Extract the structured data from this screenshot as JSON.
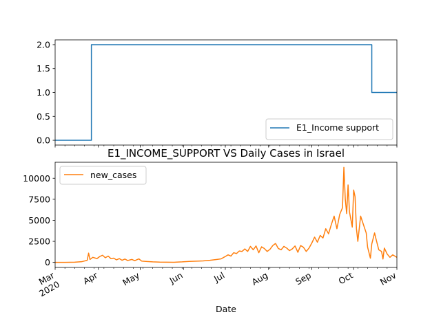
{
  "chart_data": [
    {
      "type": "line",
      "title": "",
      "xlabel": "",
      "ylabel": "",
      "x_range": [
        "2020-03-01",
        "2020-11-01"
      ],
      "ylim": [
        -0.1,
        2.1
      ],
      "yticks": [
        "0.0",
        "0.5",
        "1.0",
        "1.5",
        "2.0"
      ],
      "legend": {
        "position": "lower-right"
      },
      "series": [
        {
          "name": "E1_Income support",
          "color": "#1f77b4",
          "step": true,
          "points": [
            [
              "2020-03-01",
              0
            ],
            [
              "2020-03-26",
              0
            ],
            [
              "2020-03-27",
              0
            ],
            [
              "2020-03-27",
              2
            ],
            [
              "2020-10-14",
              2
            ],
            [
              "2020-10-14",
              1
            ],
            [
              "2020-11-01",
              1
            ]
          ]
        }
      ]
    },
    {
      "type": "line",
      "title": "E1_INCOME_SUPPORT VS Daily Cases in Israel",
      "xlabel": "Date",
      "ylabel": "",
      "x_range": [
        "2020-03-01",
        "2020-11-01"
      ],
      "ylim": [
        -600,
        11900
      ],
      "yticks": [
        "0",
        "2500",
        "5000",
        "7500",
        "10000"
      ],
      "legend": {
        "position": "upper-left"
      },
      "series": [
        {
          "name": "new_cases",
          "color": "#ff7f0e",
          "points": [
            [
              "2020-03-01",
              2
            ],
            [
              "2020-03-08",
              5
            ],
            [
              "2020-03-15",
              20
            ],
            [
              "2020-03-20",
              80
            ],
            [
              "2020-03-24",
              250
            ],
            [
              "2020-03-25",
              1100
            ],
            [
              "2020-03-26",
              350
            ],
            [
              "2020-03-28",
              600
            ],
            [
              "2020-03-31",
              450
            ],
            [
              "2020-04-02",
              700
            ],
            [
              "2020-04-04",
              850
            ],
            [
              "2020-04-06",
              550
            ],
            [
              "2020-04-08",
              750
            ],
            [
              "2020-04-10",
              450
            ],
            [
              "2020-04-12",
              500
            ],
            [
              "2020-04-14",
              300
            ],
            [
              "2020-04-16",
              450
            ],
            [
              "2020-04-18",
              250
            ],
            [
              "2020-04-20",
              400
            ],
            [
              "2020-04-22",
              220
            ],
            [
              "2020-04-25",
              350
            ],
            [
              "2020-04-27",
              200
            ],
            [
              "2020-04-30",
              420
            ],
            [
              "2020-05-02",
              160
            ],
            [
              "2020-05-05",
              120
            ],
            [
              "2020-05-10",
              60
            ],
            [
              "2020-05-15",
              30
            ],
            [
              "2020-05-20",
              20
            ],
            [
              "2020-05-25",
              15
            ],
            [
              "2020-05-31",
              60
            ],
            [
              "2020-06-05",
              120
            ],
            [
              "2020-06-10",
              150
            ],
            [
              "2020-06-15",
              180
            ],
            [
              "2020-06-20",
              250
            ],
            [
              "2020-06-25",
              350
            ],
            [
              "2020-06-28",
              420
            ],
            [
              "2020-07-01",
              700
            ],
            [
              "2020-07-03",
              900
            ],
            [
              "2020-07-05",
              750
            ],
            [
              "2020-07-07",
              1150
            ],
            [
              "2020-07-09",
              1050
            ],
            [
              "2020-07-11",
              1350
            ],
            [
              "2020-07-13",
              1300
            ],
            [
              "2020-07-15",
              1600
            ],
            [
              "2020-07-17",
              1300
            ],
            [
              "2020-07-19",
              1900
            ],
            [
              "2020-07-21",
              1500
            ],
            [
              "2020-07-23",
              1950
            ],
            [
              "2020-07-25",
              1150
            ],
            [
              "2020-07-27",
              1850
            ],
            [
              "2020-07-29",
              1650
            ],
            [
              "2020-07-31",
              1300
            ],
            [
              "2020-08-02",
              1550
            ],
            [
              "2020-08-04",
              2000
            ],
            [
              "2020-08-06",
              2250
            ],
            [
              "2020-08-08",
              1650
            ],
            [
              "2020-08-10",
              1500
            ],
            [
              "2020-08-12",
              1900
            ],
            [
              "2020-08-14",
              1700
            ],
            [
              "2020-08-16",
              1400
            ],
            [
              "2020-08-18",
              1600
            ],
            [
              "2020-08-20",
              1950
            ],
            [
              "2020-08-22",
              1200
            ],
            [
              "2020-08-24",
              2000
            ],
            [
              "2020-08-26",
              1800
            ],
            [
              "2020-08-28",
              1300
            ],
            [
              "2020-08-30",
              1700
            ],
            [
              "2020-09-01",
              2300
            ],
            [
              "2020-09-03",
              3000
            ],
            [
              "2020-09-05",
              2400
            ],
            [
              "2020-09-07",
              3200
            ],
            [
              "2020-09-09",
              2900
            ],
            [
              "2020-09-11",
              4000
            ],
            [
              "2020-09-13",
              3400
            ],
            [
              "2020-09-15",
              4500
            ],
            [
              "2020-09-17",
              5500
            ],
            [
              "2020-09-19",
              4000
            ],
            [
              "2020-09-21",
              5700
            ],
            [
              "2020-09-23",
              6500
            ],
            [
              "2020-09-24",
              11300
            ],
            [
              "2020-09-25",
              7500
            ],
            [
              "2020-09-26",
              5800
            ],
            [
              "2020-09-27",
              9200
            ],
            [
              "2020-09-28",
              6000
            ],
            [
              "2020-09-30",
              4200
            ],
            [
              "2020-10-01",
              8600
            ],
            [
              "2020-10-02",
              7800
            ],
            [
              "2020-10-03",
              4000
            ],
            [
              "2020-10-04",
              2500
            ],
            [
              "2020-10-06",
              5500
            ],
            [
              "2020-10-08",
              4500
            ],
            [
              "2020-10-10",
              3500
            ],
            [
              "2020-10-11",
              1800
            ],
            [
              "2020-10-13",
              500
            ],
            [
              "2020-10-14",
              2200
            ],
            [
              "2020-10-16",
              3500
            ],
            [
              "2020-10-17",
              2800
            ],
            [
              "2020-10-19",
              1500
            ],
            [
              "2020-10-21",
              1300
            ],
            [
              "2020-10-22",
              400
            ],
            [
              "2020-10-23",
              1700
            ],
            [
              "2020-10-25",
              1000
            ],
            [
              "2020-10-27",
              600
            ],
            [
              "2020-10-29",
              900
            ],
            [
              "2020-10-31",
              700
            ],
            [
              "2020-11-01",
              600
            ]
          ]
        }
      ]
    }
  ],
  "xaxis": {
    "ticks": [
      {
        "date": "2020-03-01",
        "label": "Mar",
        "sublabel": "2020"
      },
      {
        "date": "2020-04-01",
        "label": "Apr"
      },
      {
        "date": "2020-05-01",
        "label": "May"
      },
      {
        "date": "2020-06-01",
        "label": "Jun"
      },
      {
        "date": "2020-07-01",
        "label": "Jul"
      },
      {
        "date": "2020-08-01",
        "label": "Aug"
      },
      {
        "date": "2020-09-01",
        "label": "Sep"
      },
      {
        "date": "2020-10-01",
        "label": "Oct"
      },
      {
        "date": "2020-11-01",
        "label": "Nov"
      }
    ]
  }
}
